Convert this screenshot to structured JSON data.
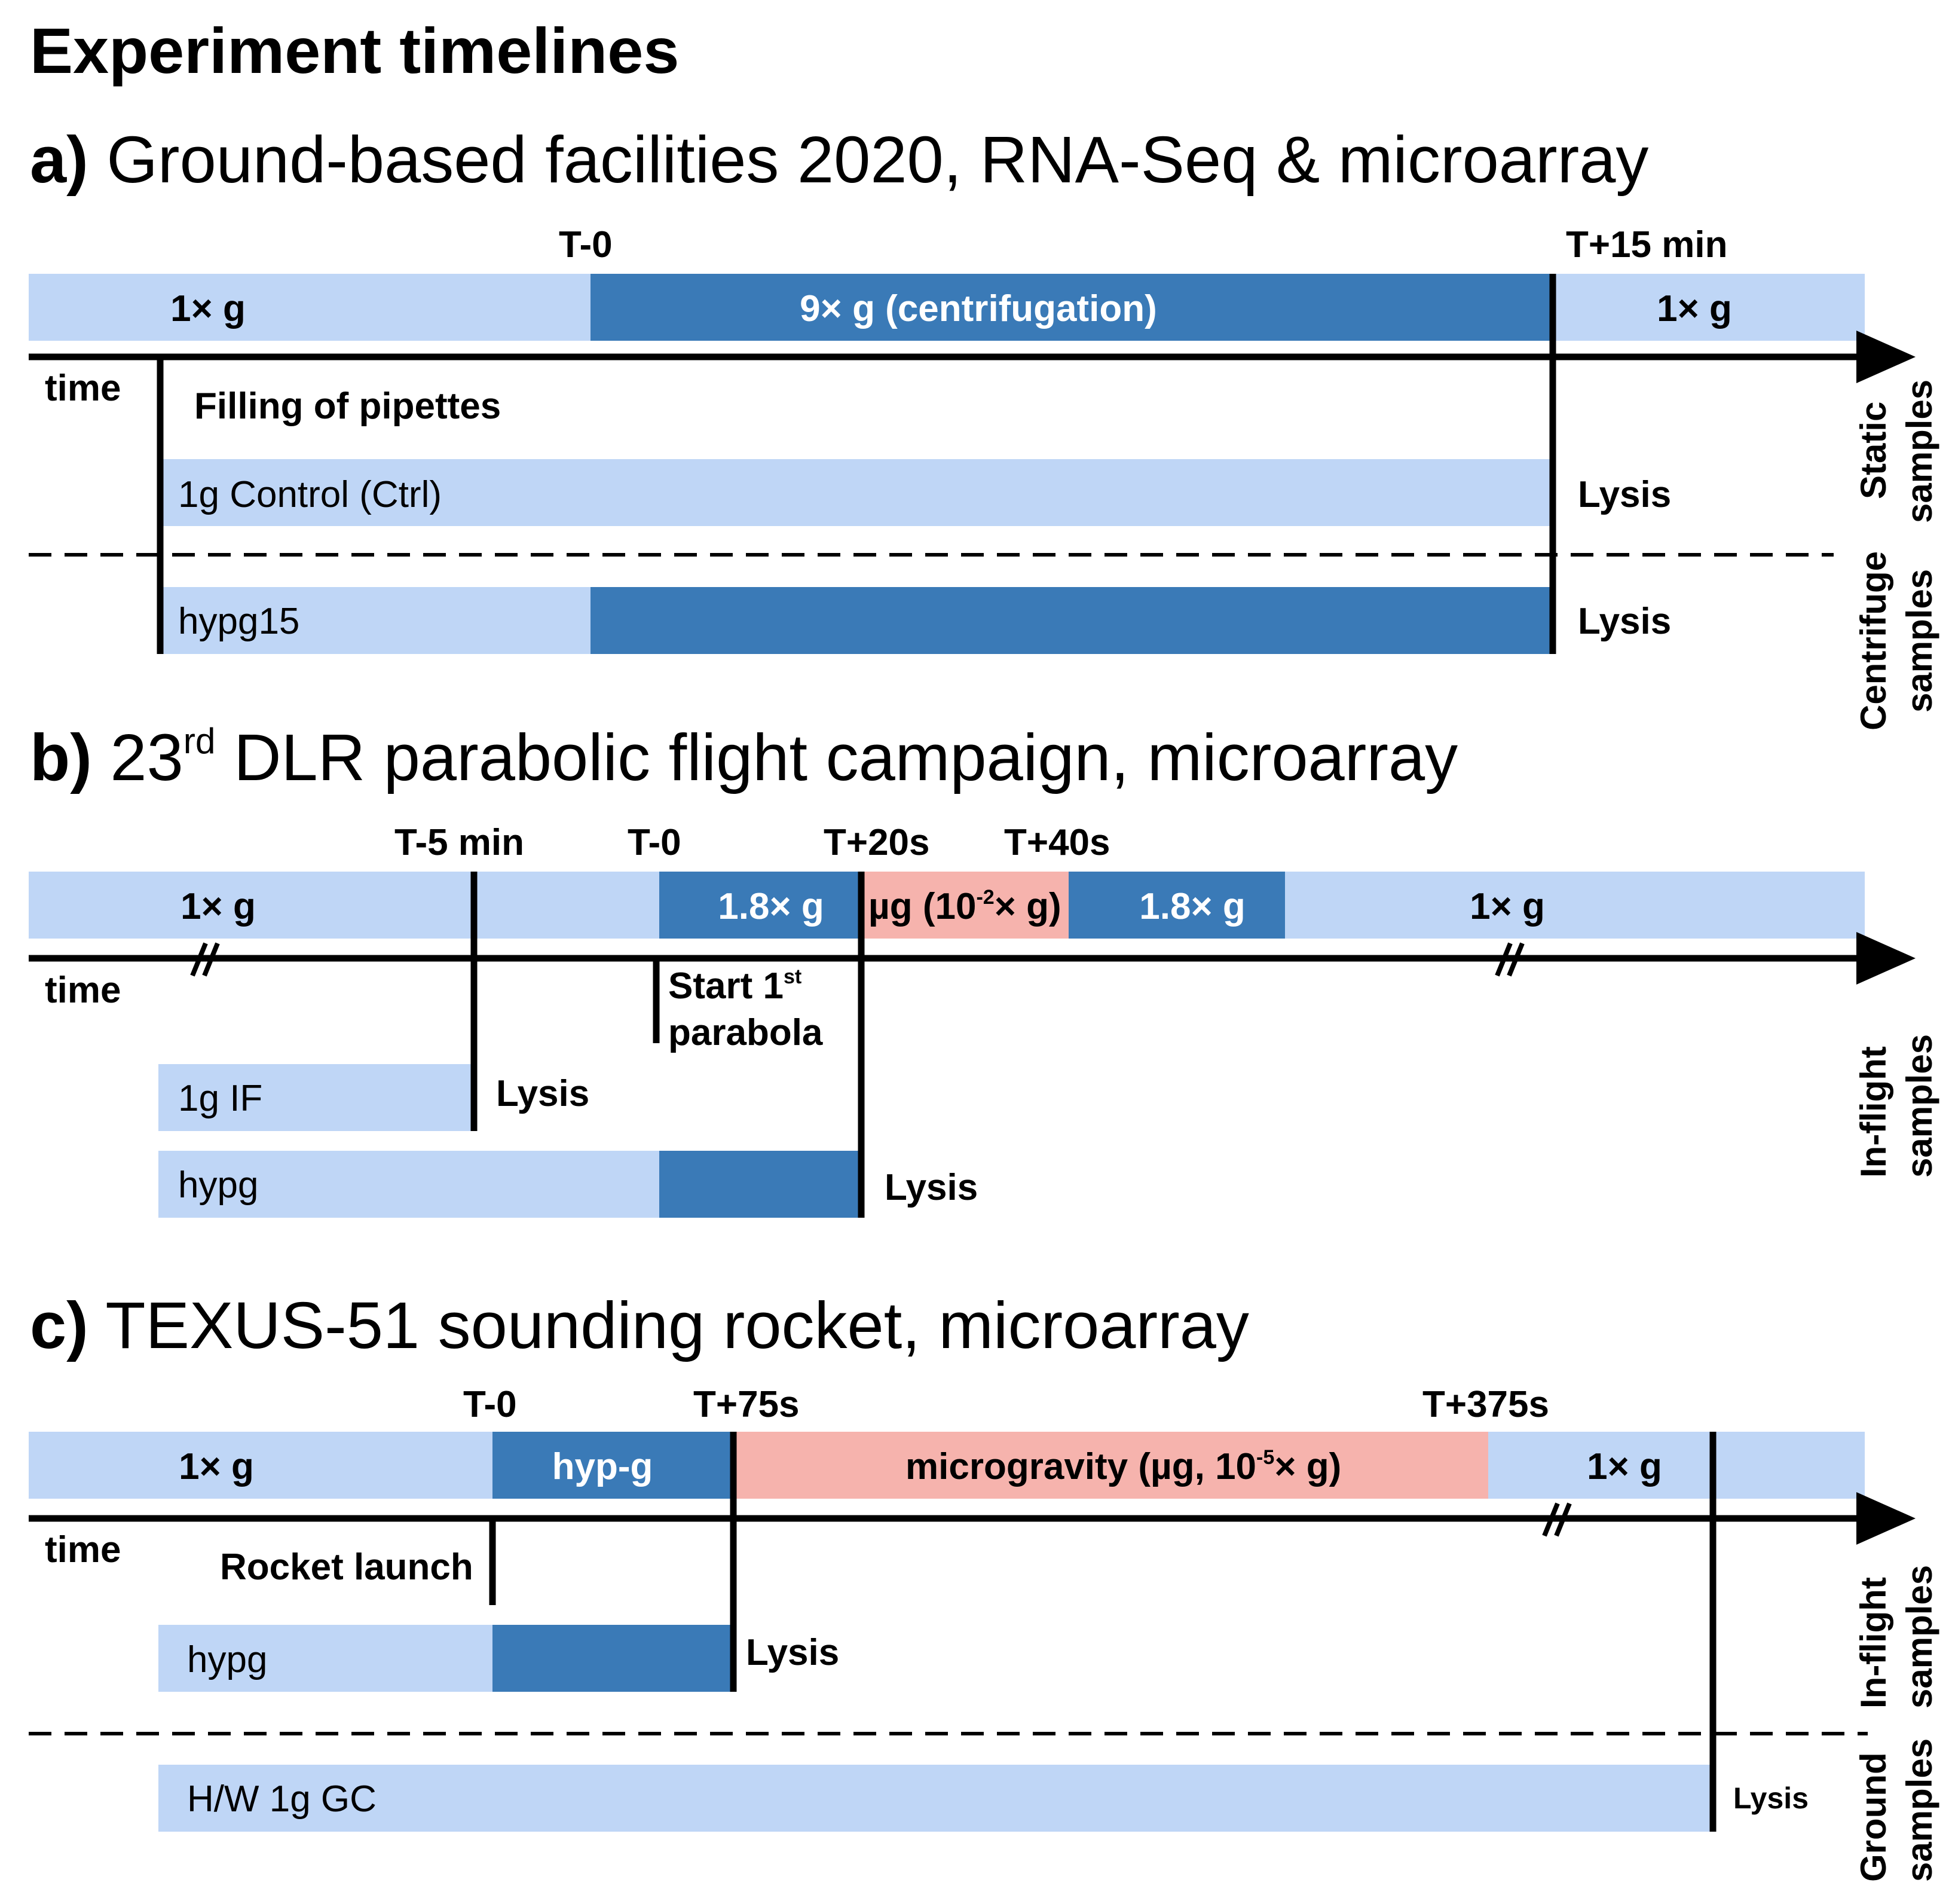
{
  "title": "Experiment timelines",
  "colors": {
    "light_blue": "#bfd6f6",
    "dark_blue": "#3a7ab7",
    "pink": "#f6b3ad",
    "line": "#000000",
    "white_text": "#ffffff"
  },
  "section_a": {
    "letter": "a)",
    "heading": "Ground-based facilities 2020, RNA-Seq & microarray",
    "tick_t0": "T-0",
    "tick_t15": "T+15 min",
    "phase_1g_left": "1× g",
    "phase_9g": "9× g (centrifugation)",
    "phase_1g_right": "1× g",
    "time_label": "time",
    "filling_label": "Filling of pipettes",
    "ctrl_label": "1g Control (Ctrl)",
    "ctrl_lysis": "Lysis",
    "hypg_label": "hypg15",
    "hypg_lysis": "Lysis",
    "side_static": [
      "Static",
      "samples"
    ],
    "side_centrifuge": [
      "Centrifuge",
      "samples"
    ]
  },
  "section_b": {
    "letter": "b)",
    "heading_pre": "23",
    "heading_sup": "rd",
    "heading_post": " DLR parabolic flight campaign, microarray",
    "tick_t5": "T-5 min",
    "tick_t0": "T-0",
    "tick_t20": "T+20s",
    "tick_t40": "T+40s",
    "phase_1g_left": "1× g",
    "phase_18g_a": "1.8× g",
    "phase_ug_pre": "µg (10",
    "phase_ug_sup": "-2",
    "phase_ug_post": "× g)",
    "phase_18g_b": "1.8× g",
    "phase_1g_right": "1× g",
    "time_label": "time",
    "start_pre": "Start 1",
    "start_sup": "st",
    "start_line2": "parabola",
    "if_label": "1g IF",
    "if_lysis": "Lysis",
    "hypg_label": "hypg",
    "hypg_lysis": "Lysis",
    "side_inflight": [
      "In-flight",
      "samples"
    ]
  },
  "section_c": {
    "letter": "c)",
    "heading": "TEXUS-51 sounding rocket, microarray",
    "tick_t0": "T-0",
    "tick_t75": "T+75s",
    "tick_t375": "T+375s",
    "phase_1g_left": "1× g",
    "phase_hypg": "hyp-g",
    "phase_ug_pre": "microgravity (µg, 10",
    "phase_ug_sup": "-5",
    "phase_ug_post": "× g)",
    "phase_1g_right": "1× g",
    "time_label": "time",
    "launch_label": "Rocket launch",
    "hypg_label": "hypg",
    "hypg_lysis": "Lysis",
    "gc_label": "H/W 1g GC",
    "gc_lysis": "Lysis",
    "side_inflight": [
      "In-flight",
      "samples"
    ],
    "side_ground": [
      "Ground",
      "samples"
    ]
  }
}
